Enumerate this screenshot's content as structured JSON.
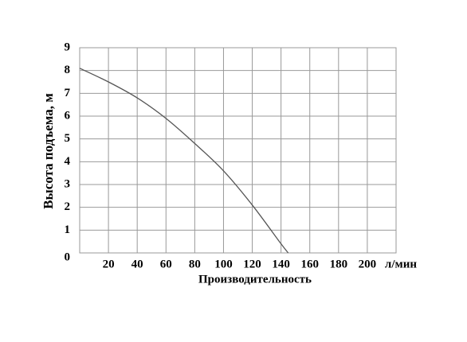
{
  "chart_data": {
    "type": "line",
    "ylabel": "Высота подъема, м",
    "xlabel": "Производительность",
    "x_unit": "л/мин",
    "x": [
      0,
      20,
      40,
      60,
      80,
      100,
      120,
      140,
      145
    ],
    "values": [
      8.1,
      7.5,
      6.8,
      5.9,
      4.8,
      3.6,
      2.1,
      0.4,
      0
    ],
    "color": "#555555",
    "xlim": [
      0,
      220
    ],
    "xticks": [
      20,
      40,
      60,
      80,
      100,
      120,
      140,
      160,
      180,
      200
    ],
    "ylim": [
      0,
      9
    ],
    "yticks": [
      0,
      1,
      2,
      3,
      4,
      5,
      6,
      7,
      8,
      9
    ],
    "grid": true
  }
}
